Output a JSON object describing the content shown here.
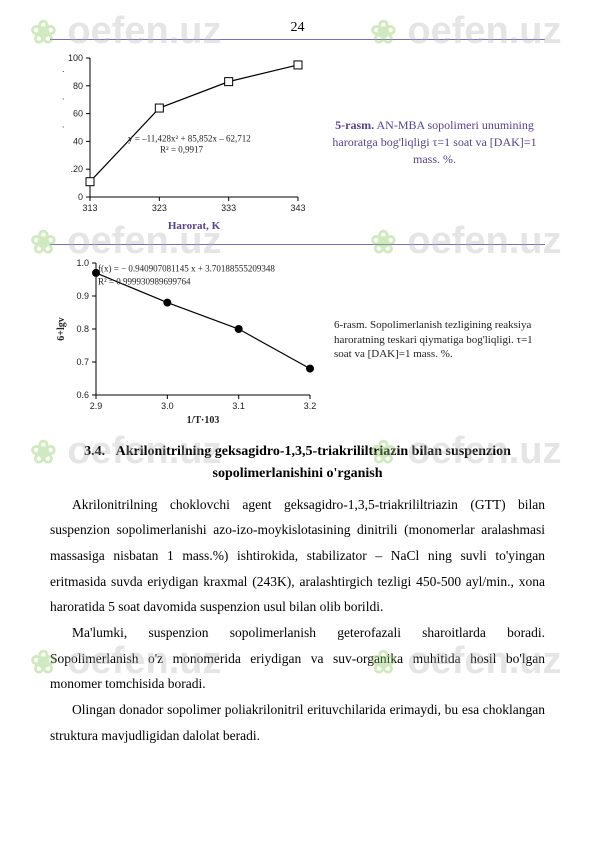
{
  "page_number": "24",
  "watermark_text": "oefen.uz",
  "chart1": {
    "type": "line",
    "xlim": [
      313,
      343
    ],
    "ylim": [
      0,
      100
    ],
    "xticks": [
      313,
      323,
      333,
      343
    ],
    "yticks": [
      0,
      20,
      40,
      60,
      80,
      100
    ],
    "ytick_labels": [
      "0",
      ".20",
      "40",
      "60",
      "80",
      "100"
    ],
    "points": [
      {
        "x": 313,
        "y": 11
      },
      {
        "x": 323,
        "y": 64
      },
      {
        "x": 333,
        "y": 83
      },
      {
        "x": 343,
        "y": 95
      }
    ],
    "eq_line1": "y = –11,428x² + 85,852x – 62,712",
    "eq_line2": "R² = 0,9917",
    "line_color": "#000000",
    "marker_size": 8,
    "xlabel": "Harorat, K",
    "ylabel_glyph": "τ"
  },
  "caption5": {
    "bold": "5-rasm.",
    "rest": " AN-MBA sopolimeri unumining haroratga bog'liqligi τ=1 soat va [DAK]=1 mass. %."
  },
  "chart2": {
    "type": "line",
    "xlim": [
      2.9,
      3.2
    ],
    "ylim": [
      0.6,
      1.0
    ],
    "xticks": [
      2.9,
      3.0,
      3.1,
      3.2
    ],
    "yticks": [
      0.6,
      0.7,
      0.8,
      0.9,
      1.0
    ],
    "points": [
      {
        "x": 2.9,
        "y": 0.97
      },
      {
        "x": 3.0,
        "y": 0.88
      },
      {
        "x": 3.1,
        "y": 0.8
      },
      {
        "x": 3.2,
        "y": 0.68
      }
    ],
    "eq_line1": "f(x) = − 0.940907081145 x + 3.70188555209348",
    "eq_line2": "R² = 0.999930989699764",
    "line_color": "#000000",
    "marker_fill": "#000000",
    "marker_size": 8,
    "xlabel": "1/T·103",
    "ylabel": "6+lgv"
  },
  "caption6": {
    "title": "6-rasm.",
    "rest": " Sopolimerlanish tezligining reaksiya haroratning teskari qiymatiga bog'liqligi. τ=1 soat va  [DAK]=1 mass. %."
  },
  "section": {
    "num": "3.4.",
    "title": "Akrilonitrilning geksagidro-1,3,5-triakrililtriazin bilan suspenzion sopolimerlanishini o'rganish"
  },
  "paragraphs": [
    "Akrilonitrilning choklovchi agent geksagidro-1,3,5-triakrililtriazin (GTT) bilan suspenzion sopolimerlanishi  azo-izo-moykislotasining  dinitrili (monomerlar aralashmasi massasiga nisbatan 1 mass.%) ishtirokida, stabilizator – NaCl ning suvli to'yingan eritmasida suvda eriydigan kraxmal (243K), aralashtirgich tezligi 450-500 ayl/min., xona haroratida 5 soat davomida suspenzion usul bilan olib borildi.",
    "Ma'lumki,  suspenzion sopolimerlanish geterofazali sharoitlarda boradi. Sopolimerlanish o'z monomerida eriydigan va suv-organika  muhitida hosil bo'lgan monomer tomchisida boradi.",
    "Olingan donador sopolimer poliakrilonitril erituvchilarida erimaydi, bu esa choklangan struktura mavjudligidan dalolat beradi."
  ]
}
